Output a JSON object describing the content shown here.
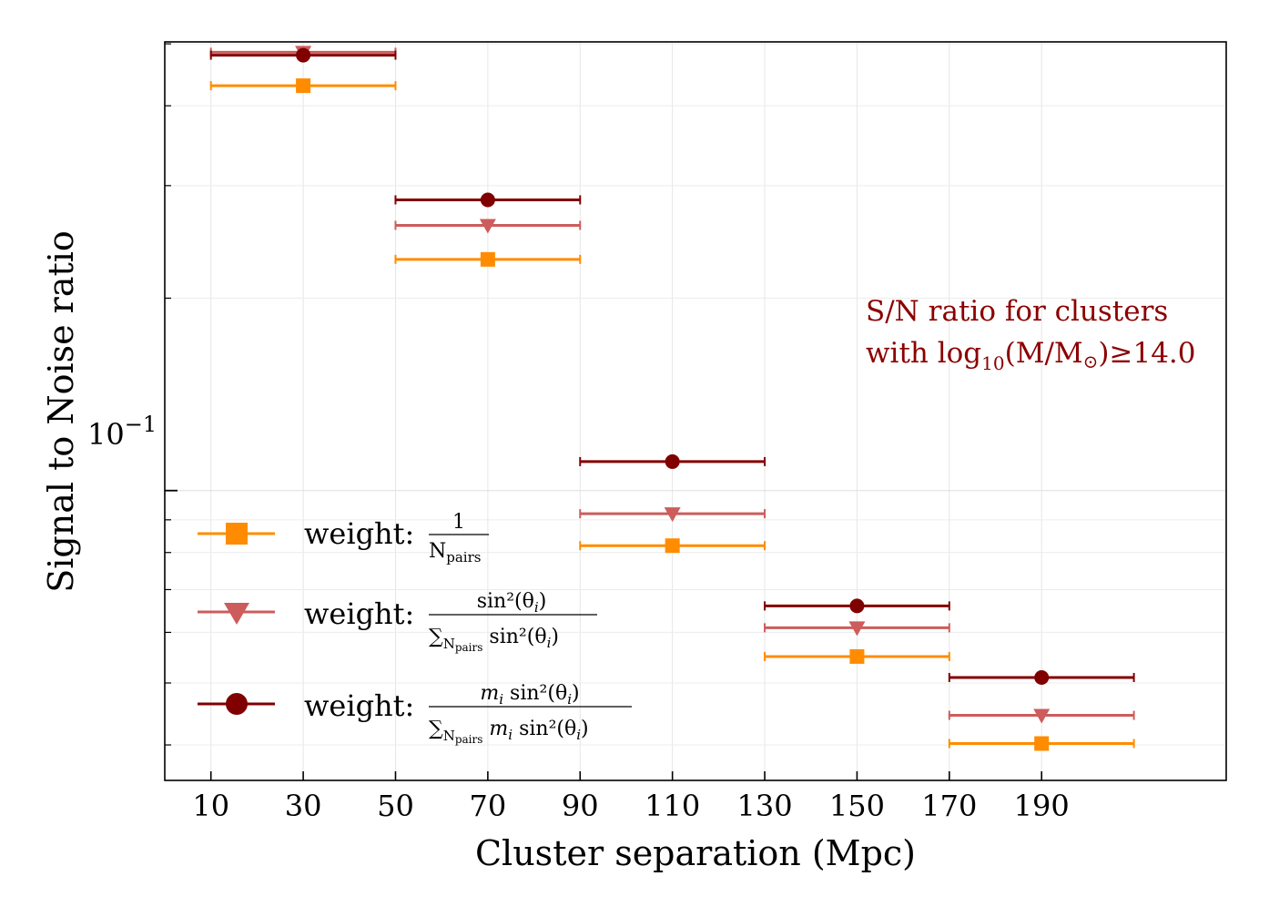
{
  "chart_data": {
    "type": "scatter",
    "title": "",
    "xlabel": "Cluster separation (Mpc)",
    "ylabel": "Signal to Noise ratio",
    "yscale": "log",
    "xlim": [
      0,
      230
    ],
    "ylim": [
      0.0352,
      0.5035
    ],
    "xticks": [
      10,
      30,
      50,
      70,
      90,
      110,
      130,
      150,
      170,
      190
    ],
    "xtick_labels": [
      "10",
      "30",
      "50",
      "70",
      "90",
      "110",
      "130",
      "150",
      "170",
      "190"
    ],
    "ytick_major_label": "10",
    "ytick_major_exp": "−1",
    "ytick_major_value": 0.1,
    "grid": true,
    "x_error_halfwidth": 20,
    "series": [
      {
        "name": "weight: 1/N_pairs",
        "marker": "square",
        "color": "#ff8c00",
        "x": [
          30,
          70,
          110,
          150,
          190
        ],
        "y": [
          0.43,
          0.23,
          0.082,
          0.055,
          0.0402
        ]
      },
      {
        "name": "weight: sin²(θ_i)/Σ sin²(θ_i)",
        "marker": "triangle-down",
        "color": "#cd5c5c",
        "x": [
          30,
          70,
          110,
          150,
          190
        ],
        "y": [
          0.485,
          0.26,
          0.092,
          0.061,
          0.0445
        ]
      },
      {
        "name": "weight: m_i sin²(θ_i)/Σ m_i sin²(θ_i)",
        "marker": "circle",
        "color": "#800000",
        "x": [
          30,
          70,
          110,
          150,
          190
        ],
        "y": [
          0.48,
          0.285,
          0.111,
          0.066,
          0.051
        ]
      }
    ],
    "legend": {
      "placement": "lower-left",
      "entries": [
        {
          "prefix": "weight:",
          "numerator": "1",
          "denominator": "N",
          "denominator_sub": "pairs"
        },
        {
          "prefix": "weight:",
          "numerator": "sin²(θ",
          "numerator_sub": "i",
          "numerator_tail": ")",
          "denominator": "∑",
          "denominator_sub": "N",
          "denominator_subsub": "pairs",
          "denominator_tail": " sin²(θ",
          "denominator_tail_sub": "i",
          "denominator_tail_end": ")"
        },
        {
          "prefix": "weight:",
          "numerator": "m",
          "numerator_sub": "i",
          "numerator_tail": " sin²(θ",
          "numerator_tail_sub": "i",
          "numerator_end": ")",
          "denominator": "∑",
          "denominator_sub": "N",
          "denominator_subsub": "pairs",
          "denominator_tail": " m",
          "denominator_tail_sub": "i",
          "denominator_tail_mid": " sin²(θ",
          "denominator_tail_sub2": "i",
          "denominator_tail_end": ")"
        }
      ]
    },
    "annotation": {
      "line1": "S/N ratio for clusters",
      "line2_prefix": "with log",
      "line2_sub": "10",
      "line2_mid": "(M/M",
      "line2_sun": "⊙",
      "line2_suffix": ")≥14.0",
      "color": "#8b0000"
    }
  }
}
